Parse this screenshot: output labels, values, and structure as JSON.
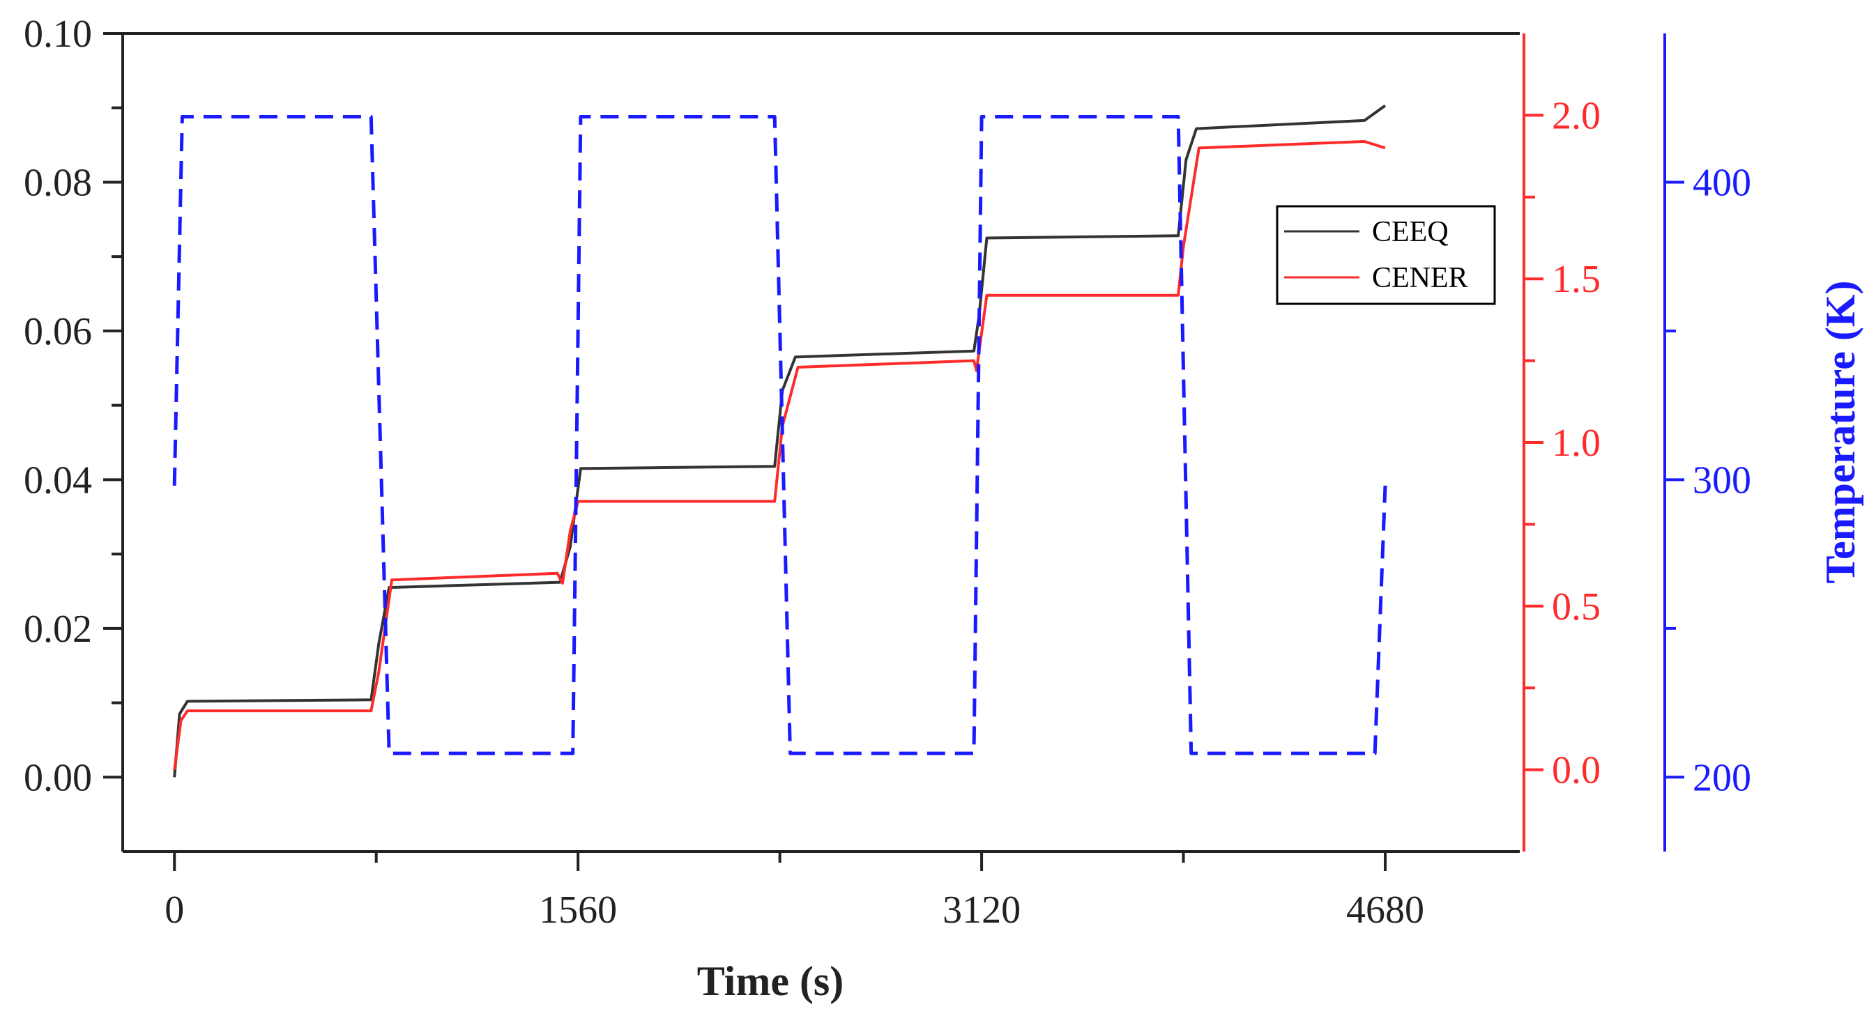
{
  "chart_data": {
    "type": "line",
    "xlabel": "Time (s)",
    "x_ticks": [
      0,
      1560,
      3120,
      4680
    ],
    "xlim": [
      -200,
      5200
    ],
    "y_axes": {
      "left": {
        "label": "",
        "range": [
          -0.01,
          0.1
        ],
        "ticks": [
          "0.00",
          "0.02",
          "0.04",
          "0.06",
          "0.08",
          "0.10"
        ],
        "color": "#333333"
      },
      "right1": {
        "label": "",
        "range": [
          -0.25,
          2.25
        ],
        "ticks": [
          "0.0",
          "0.5",
          "1.0",
          "1.5",
          "2.0"
        ],
        "color": "#ff2a2a"
      },
      "right2": {
        "label": "Temperature (K)",
        "range": [
          175,
          450
        ],
        "ticks": [
          "200",
          "300",
          "400"
        ],
        "color": "#1a1aff"
      }
    },
    "legend": {
      "position": "top-right",
      "entries": [
        "CEEQ",
        "CENER"
      ]
    },
    "series": [
      {
        "name": "CEEQ",
        "axis": "left",
        "color": "#333333",
        "style": "solid",
        "x": [
          0,
          20,
          50,
          760,
          790,
          830,
          1490,
          1530,
          1570,
          2320,
          2350,
          2400,
          3090,
          3110,
          3140,
          3880,
          3910,
          3950,
          4600,
          4680
        ],
        "y": [
          0.0,
          0.0085,
          0.0102,
          0.0104,
          0.018,
          0.0255,
          0.0262,
          0.031,
          0.0415,
          0.0418,
          0.052,
          0.0565,
          0.0573,
          0.062,
          0.0725,
          0.0728,
          0.083,
          0.0872,
          0.0883,
          0.0903
        ]
      },
      {
        "name": "CENER",
        "axis": "right1",
        "color": "#ff2a2a",
        "style": "solid",
        "x": [
          0,
          25,
          50,
          760,
          790,
          840,
          1480,
          1500,
          1530,
          1560,
          2320,
          2350,
          2410,
          3090,
          3100,
          3140,
          3880,
          3900,
          3960,
          4600,
          4680
        ],
        "y": [
          0.0,
          0.15,
          0.18,
          0.18,
          0.3,
          0.58,
          0.6,
          0.57,
          0.73,
          0.82,
          0.82,
          1.05,
          1.23,
          1.25,
          1.22,
          1.45,
          1.45,
          1.6,
          1.9,
          1.92,
          1.9
        ]
      },
      {
        "name": "Temperature",
        "axis": "right2",
        "color": "#1a1aff",
        "style": "dashed",
        "x": [
          0,
          30,
          760,
          830,
          1540,
          1570,
          2320,
          2380,
          3090,
          3120,
          3880,
          3930,
          4640,
          4680
        ],
        "y": [
          298,
          422,
          422,
          208,
          208,
          422,
          422,
          208,
          208,
          422,
          422,
          208,
          208,
          298
        ]
      }
    ]
  }
}
